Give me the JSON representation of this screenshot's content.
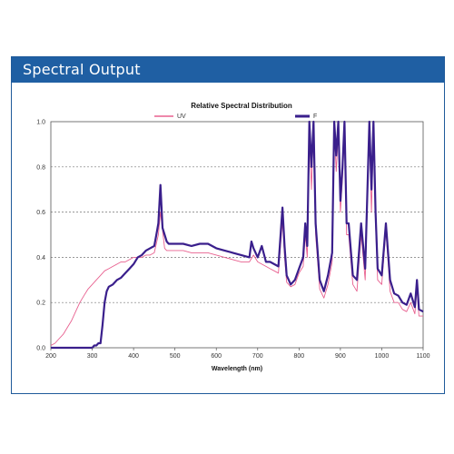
{
  "header": {
    "title": "Spectral Output"
  },
  "colors": {
    "header_bg": "#1f5fa3",
    "uv": "#e8608f",
    "f": "#3a1f8c",
    "grid": "#777777"
  },
  "chart_data": {
    "type": "line",
    "title": "Relative Spectral Distribution",
    "xlabel": "Wavelength (nm)",
    "ylabel": "",
    "xlim": [
      200,
      1100
    ],
    "ylim": [
      0,
      1.0
    ],
    "xticks": [
      200,
      300,
      400,
      500,
      600,
      700,
      800,
      900,
      1000,
      1100
    ],
    "yticks": [
      0.0,
      0.2,
      0.4,
      0.6,
      0.8,
      1.0
    ],
    "ytick_labels": [
      "0.0",
      "0.2",
      "0.4",
      "0.6",
      "0.8",
      "1.0"
    ],
    "grid": "horizontal dotted",
    "legend_position": "top",
    "series": [
      {
        "name": "UV",
        "color": "#e8608f",
        "x": [
          200,
          210,
          220,
          230,
          240,
          250,
          260,
          270,
          280,
          290,
          300,
          310,
          320,
          330,
          340,
          350,
          360,
          370,
          380,
          390,
          400,
          410,
          420,
          430,
          440,
          450,
          460,
          465,
          470,
          475,
          480,
          490,
          500,
          520,
          540,
          560,
          580,
          600,
          620,
          640,
          660,
          680,
          690,
          700,
          710,
          720,
          730,
          740,
          750,
          760,
          765,
          770,
          780,
          790,
          800,
          810,
          815,
          820,
          825,
          830,
          835,
          840,
          850,
          860,
          870,
          880,
          885,
          890,
          895,
          900,
          905,
          910,
          915,
          920,
          930,
          940,
          950,
          960,
          970,
          975,
          980,
          985,
          990,
          1000,
          1010,
          1020,
          1030,
          1040,
          1050,
          1060,
          1070,
          1080,
          1085,
          1090,
          1100
        ],
        "y": [
          0.01,
          0.02,
          0.04,
          0.06,
          0.09,
          0.12,
          0.16,
          0.2,
          0.23,
          0.26,
          0.28,
          0.3,
          0.32,
          0.34,
          0.35,
          0.36,
          0.37,
          0.38,
          0.38,
          0.39,
          0.4,
          0.4,
          0.4,
          0.41,
          0.41,
          0.42,
          0.5,
          0.6,
          0.52,
          0.44,
          0.43,
          0.43,
          0.43,
          0.43,
          0.42,
          0.42,
          0.42,
          0.41,
          0.4,
          0.39,
          0.38,
          0.38,
          0.41,
          0.38,
          0.37,
          0.36,
          0.35,
          0.34,
          0.33,
          0.56,
          0.4,
          0.29,
          0.27,
          0.28,
          0.33,
          0.36,
          0.5,
          0.4,
          0.95,
          0.7,
          0.99,
          0.5,
          0.26,
          0.22,
          0.28,
          0.38,
          0.98,
          0.78,
          0.95,
          0.6,
          0.75,
          0.95,
          0.5,
          0.5,
          0.28,
          0.25,
          0.5,
          0.3,
          0.95,
          0.6,
          0.95,
          0.55,
          0.3,
          0.28,
          0.52,
          0.25,
          0.2,
          0.2,
          0.17,
          0.16,
          0.2,
          0.15,
          0.26,
          0.14,
          0.14
        ]
      },
      {
        "name": "F",
        "color": "#3a1f8c",
        "x": [
          200,
          250,
          290,
          300,
          305,
          310,
          315,
          320,
          325,
          330,
          335,
          340,
          350,
          360,
          370,
          380,
          390,
          400,
          410,
          420,
          430,
          440,
          450,
          455,
          460,
          465,
          470,
          475,
          480,
          485,
          490,
          500,
          520,
          540,
          560,
          580,
          600,
          620,
          640,
          660,
          680,
          685,
          690,
          700,
          710,
          720,
          730,
          740,
          750,
          760,
          765,
          770,
          780,
          790,
          800,
          810,
          815,
          820,
          825,
          830,
          835,
          840,
          850,
          860,
          870,
          880,
          885,
          890,
          895,
          900,
          905,
          910,
          915,
          920,
          930,
          940,
          950,
          960,
          970,
          975,
          980,
          985,
          990,
          1000,
          1010,
          1020,
          1030,
          1040,
          1050,
          1060,
          1070,
          1080,
          1085,
          1090,
          1100
        ],
        "y": [
          0.0,
          0.0,
          0.0,
          0.0,
          0.01,
          0.01,
          0.02,
          0.02,
          0.1,
          0.2,
          0.25,
          0.27,
          0.28,
          0.3,
          0.31,
          0.33,
          0.35,
          0.37,
          0.4,
          0.41,
          0.43,
          0.44,
          0.45,
          0.5,
          0.55,
          0.72,
          0.53,
          0.5,
          0.47,
          0.46,
          0.46,
          0.46,
          0.46,
          0.45,
          0.46,
          0.46,
          0.44,
          0.43,
          0.42,
          0.41,
          0.4,
          0.47,
          0.44,
          0.4,
          0.45,
          0.38,
          0.38,
          0.37,
          0.36,
          0.62,
          0.45,
          0.32,
          0.28,
          0.3,
          0.35,
          0.4,
          0.55,
          0.45,
          1.0,
          0.8,
          1.0,
          0.55,
          0.3,
          0.25,
          0.32,
          0.42,
          1.0,
          0.85,
          1.0,
          0.65,
          0.8,
          1.0,
          0.55,
          0.55,
          0.32,
          0.3,
          0.55,
          0.35,
          1.0,
          0.7,
          1.0,
          0.6,
          0.35,
          0.32,
          0.55,
          0.3,
          0.24,
          0.23,
          0.2,
          0.19,
          0.24,
          0.18,
          0.3,
          0.17,
          0.16
        ]
      }
    ]
  }
}
